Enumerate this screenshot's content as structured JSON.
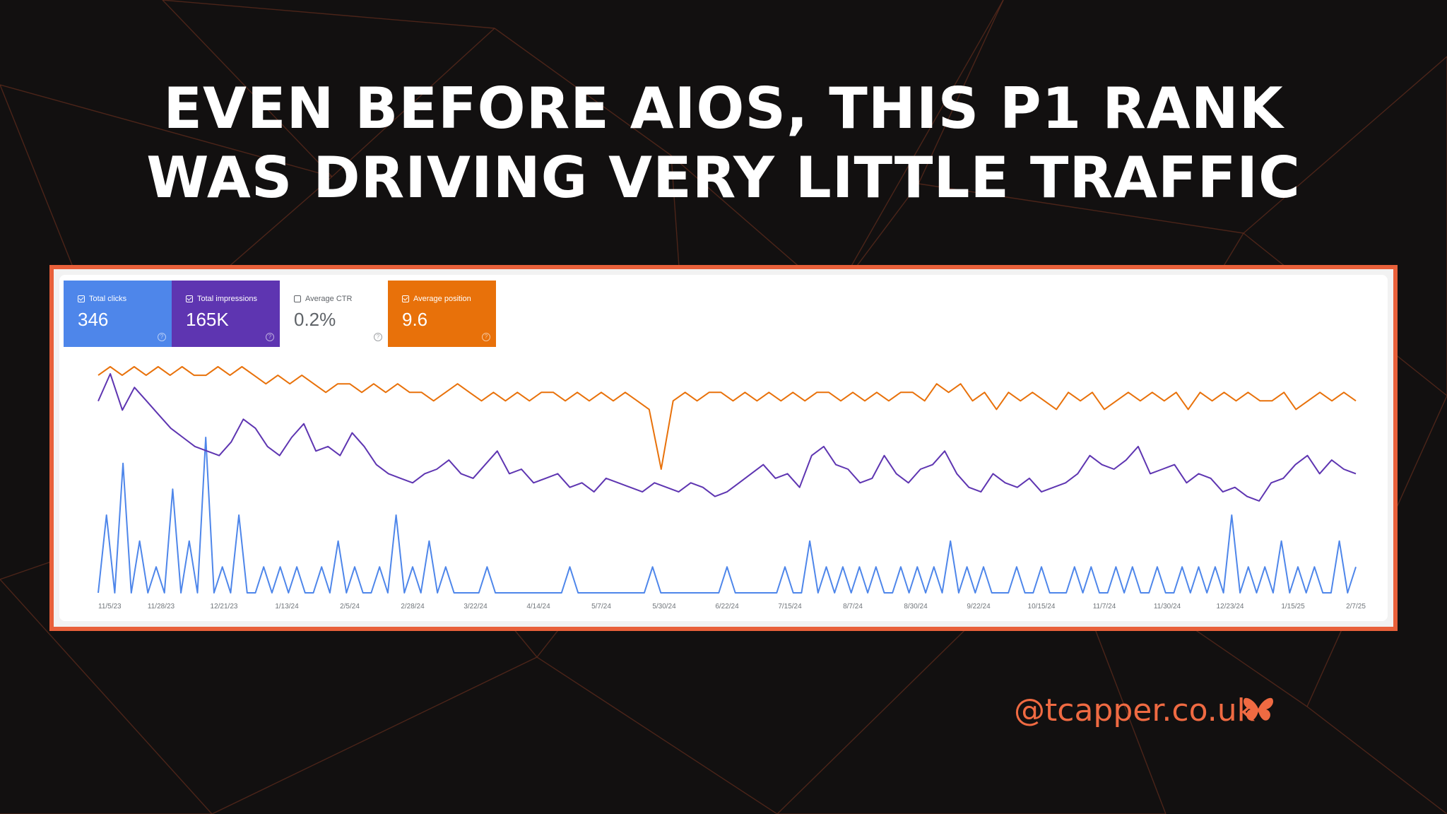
{
  "headline": {
    "line1": "EVEN BEFORE AIOS, THIS P1 RANK",
    "line2": "WAS DRIVING VERY LITTLE TRAFFIC"
  },
  "cards": [
    {
      "label": "Total clicks",
      "value": "346",
      "checked": true,
      "bg": "#4e86ea",
      "fg": "#ffffff"
    },
    {
      "label": "Total impressions",
      "value": "165K",
      "checked": true,
      "bg": "#5e35b1",
      "fg": "#ffffff"
    },
    {
      "label": "Average CTR",
      "value": "0.2%",
      "checked": false,
      "bg": "#ffffff",
      "fg": "#5f6368"
    },
    {
      "label": "Average position",
      "value": "9.6",
      "checked": true,
      "bg": "#e8710a",
      "fg": "#ffffff"
    }
  ],
  "chart_data": {
    "type": "line",
    "x_ticks": [
      "11/5/23",
      "11/28/23",
      "12/21/23",
      "1/13/24",
      "2/5/24",
      "2/28/24",
      "3/22/24",
      "4/14/24",
      "5/7/24",
      "5/30/24",
      "6/22/24",
      "7/15/24",
      "8/7/24",
      "8/30/24",
      "9/22/24",
      "10/15/24",
      "11/7/24",
      "11/30/24",
      "12/23/24",
      "1/15/25",
      "2/7/25"
    ],
    "series": [
      {
        "name": "Total clicks",
        "color": "#4e86ea",
        "values": [
          0,
          3,
          0,
          5,
          0,
          2,
          0,
          1,
          0,
          4,
          0,
          2,
          0,
          6,
          0,
          1,
          0,
          3,
          0,
          0,
          1,
          0,
          1,
          0,
          1,
          0,
          0,
          1,
          0,
          2,
          0,
          1,
          0,
          0,
          1,
          0,
          3,
          0,
          1,
          0,
          2,
          0,
          1,
          0,
          0,
          0,
          0,
          1,
          0,
          0,
          0,
          0,
          0,
          0,
          0,
          0,
          0,
          1,
          0,
          0,
          0,
          0,
          0,
          0,
          0,
          0,
          0,
          1,
          0,
          0,
          0,
          0,
          0,
          0,
          0,
          0,
          1,
          0,
          0,
          0,
          0,
          0,
          0,
          1,
          0,
          0,
          2,
          0,
          1,
          0,
          1,
          0,
          1,
          0,
          1,
          0,
          0,
          1,
          0,
          1,
          0,
          1,
          0,
          2,
          0,
          1,
          0,
          1,
          0,
          0,
          0,
          1,
          0,
          0,
          1,
          0,
          0,
          0,
          1,
          0,
          1,
          0,
          0,
          1,
          0,
          1,
          0,
          0,
          1,
          0,
          0,
          1,
          0,
          1,
          0,
          1,
          0,
          3,
          0,
          1,
          0,
          1,
          0,
          2,
          0,
          1,
          0,
          1,
          0,
          0,
          2,
          0,
          1
        ]
      },
      {
        "name": "Total impressions",
        "color": "#5e35b1",
        "values": [
          1500,
          1800,
          1400,
          1650,
          1500,
          1350,
          1200,
          1100,
          1000,
          950,
          900,
          1050,
          1300,
          1200,
          1000,
          900,
          1100,
          1250,
          950,
          1000,
          900,
          1150,
          1000,
          800,
          700,
          650,
          600,
          700,
          750,
          850,
          700,
          650,
          800,
          950,
          700,
          750,
          600,
          650,
          700,
          550,
          600,
          500,
          650,
          600,
          550,
          500,
          600,
          550,
          500,
          600,
          550,
          450,
          500,
          600,
          700,
          800,
          650,
          700,
          550,
          900,
          1000,
          800,
          750,
          600,
          650,
          900,
          700,
          600,
          750,
          800,
          950,
          700,
          550,
          500,
          700,
          600,
          550,
          650,
          500,
          550,
          600,
          700,
          900,
          800,
          750,
          850,
          1000,
          700,
          750,
          800,
          600,
          700,
          650,
          500,
          550,
          450,
          400,
          600,
          650,
          800,
          900,
          700,
          850,
          750,
          700
        ]
      },
      {
        "name": "Average position",
        "color": "#e8710a",
        "values": [
          9,
          8,
          9,
          8,
          9,
          8,
          9,
          8,
          9,
          9,
          8,
          9,
          8,
          9,
          10,
          9,
          10,
          9,
          10,
          11,
          10,
          10,
          11,
          10,
          11,
          10,
          11,
          11,
          12,
          11,
          10,
          11,
          12,
          11,
          12,
          11,
          12,
          11,
          11,
          12,
          11,
          12,
          11,
          12,
          11,
          12,
          13,
          20,
          12,
          11,
          12,
          11,
          11,
          12,
          11,
          12,
          11,
          12,
          11,
          12,
          11,
          11,
          12,
          11,
          12,
          11,
          12,
          11,
          11,
          12,
          10,
          11,
          10,
          12,
          11,
          13,
          11,
          12,
          11,
          12,
          13,
          11,
          12,
          11,
          13,
          12,
          11,
          12,
          11,
          12,
          11,
          13,
          11,
          12,
          11,
          12,
          11,
          12,
          12,
          11,
          13,
          12,
          11,
          12,
          11,
          12
        ]
      }
    ],
    "grid": false,
    "legend": "none"
  },
  "handle": "@tcapper.co.uk",
  "colors": {
    "background": "#121010",
    "accent": "#e8603a",
    "icon": "butterfly-icon"
  }
}
